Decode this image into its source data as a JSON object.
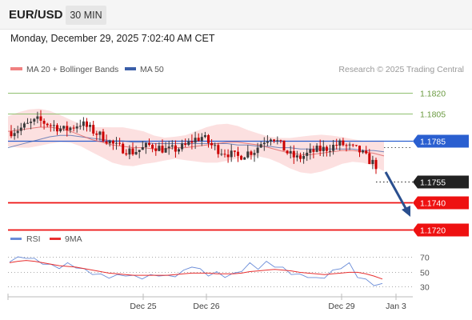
{
  "header": {
    "symbol": "EUR/USD",
    "timeframe": "30 MIN"
  },
  "timestamp": "Monday, December 29, 2025 7:02:40 AM CET",
  "legend": {
    "items": [
      {
        "label": "MA 20 + Bollinger Bands",
        "color": "#f08080"
      },
      {
        "label": "MA 50",
        "color": "#3a5ea8"
      }
    ],
    "source": "Research © 2025 Trading Central"
  },
  "colors": {
    "up": "#3a3a3a",
    "down": "#cc0000",
    "ma20": "#e06060",
    "ma50": "#3a5ea8",
    "band": "#fbdada",
    "resistance_green": "#90c070",
    "pivot_blue": "#2a5fd0",
    "support_red": "#ee1111",
    "current": "#222222",
    "arrow": "#2a4f8f",
    "rsi": "#6a8cd8",
    "rsi_ma": "#e83030"
  },
  "chart_data": [
    {
      "type": "candlestick",
      "title": "",
      "ylim": [
        1.17124,
        1.18296
      ],
      "x_ticks": [
        "Dec 25",
        "Dec 26",
        "Dec 29",
        "Jan 3"
      ],
      "series": [
        {
          "name": "MA 20 + Bollinger Bands",
          "values": [
            1.1792,
            1.1793,
            1.1794,
            1.1795,
            1.1795,
            1.1794,
            1.1792,
            1.1789,
            1.1786,
            1.1784,
            1.1782,
            1.1781,
            1.178,
            1.178,
            1.1779,
            1.1779,
            1.178,
            1.178,
            1.1781,
            1.1782,
            1.1783,
            1.1784,
            1.1784,
            1.1783,
            1.1782,
            1.178,
            1.1778,
            1.1776,
            1.1775,
            1.1775,
            1.1776,
            1.1777,
            1.1778,
            1.1778,
            1.1777,
            1.1776,
            1.1774
          ]
        },
        {
          "name": "MA 50",
          "values": [
            1.178,
            1.1782,
            1.1784,
            1.1786,
            1.1788,
            1.1789,
            1.1789,
            1.1788,
            1.1787,
            1.1786,
            1.1785,
            1.1785,
            1.1784,
            1.1784,
            1.1783,
            1.1783,
            1.1783,
            1.1783,
            1.1783,
            1.1783,
            1.1783,
            1.1783,
            1.1782,
            1.1782,
            1.1781,
            1.1781,
            1.178,
            1.178,
            1.1779,
            1.1779,
            1.1779,
            1.1779,
            1.1779,
            1.1779,
            1.1778,
            1.1778,
            1.1777
          ]
        },
        {
          "name": "Price",
          "values": [
            1.1792,
            1.1794,
            1.1797,
            1.18,
            1.1798,
            1.1796,
            1.1793,
            1.1795,
            1.1798,
            1.1794,
            1.179,
            1.1786,
            1.1781,
            1.1779,
            1.1777,
            1.1779,
            1.1782,
            1.178,
            1.1778,
            1.1779,
            1.1781,
            1.1786,
            1.1788,
            1.1782,
            1.1778,
            1.1776,
            1.1773,
            1.1776,
            1.1778,
            1.1785,
            1.1789,
            1.1782,
            1.1775,
            1.1772,
            1.1775,
            1.1778,
            1.1779,
            1.1781,
            1.1783,
            1.178,
            1.1778,
            1.1772,
            1.1767
          ]
        }
      ],
      "levels": [
        {
          "value": 1.182,
          "label": "1.1820",
          "kind": "resistance"
        },
        {
          "value": 1.1805,
          "label": "1.1805",
          "kind": "resistance"
        },
        {
          "value": 1.1785,
          "label": "1.1785",
          "kind": "pivot"
        },
        {
          "value": 1.1755,
          "label": "1.1755",
          "kind": "current"
        },
        {
          "value": 1.174,
          "label": "1.1740",
          "kind": "support"
        },
        {
          "value": 1.172,
          "label": "1.1720",
          "kind": "support"
        }
      ]
    },
    {
      "type": "line",
      "ylim": [
        24.33,
        73.18
      ],
      "y_ticks": [
        70,
        50,
        30
      ],
      "series": [
        {
          "name": "RSI",
          "values": [
            65,
            68,
            70,
            66,
            62,
            58,
            56,
            60,
            57,
            52,
            48,
            45,
            43,
            44,
            46,
            43,
            42,
            44,
            46,
            43,
            45,
            50,
            58,
            52,
            46,
            48,
            44,
            46,
            52,
            60,
            55,
            62,
            58,
            54,
            48,
            45,
            44,
            40,
            43,
            50,
            56,
            60,
            44,
            38,
            33,
            32
          ]
        },
        {
          "name": "9MA",
          "values": [
            62,
            64,
            65,
            64,
            62,
            60,
            58,
            57,
            56,
            54,
            52,
            50,
            48,
            47,
            46,
            45,
            45,
            45,
            45,
            45,
            46,
            47,
            48,
            48,
            48,
            47,
            47,
            47,
            48,
            50,
            51,
            52,
            53,
            52,
            51,
            49,
            48,
            47,
            46,
            47,
            48,
            49,
            49,
            47,
            44,
            40
          ]
        }
      ],
      "legend": [
        "RSI",
        "9MA"
      ]
    }
  ]
}
